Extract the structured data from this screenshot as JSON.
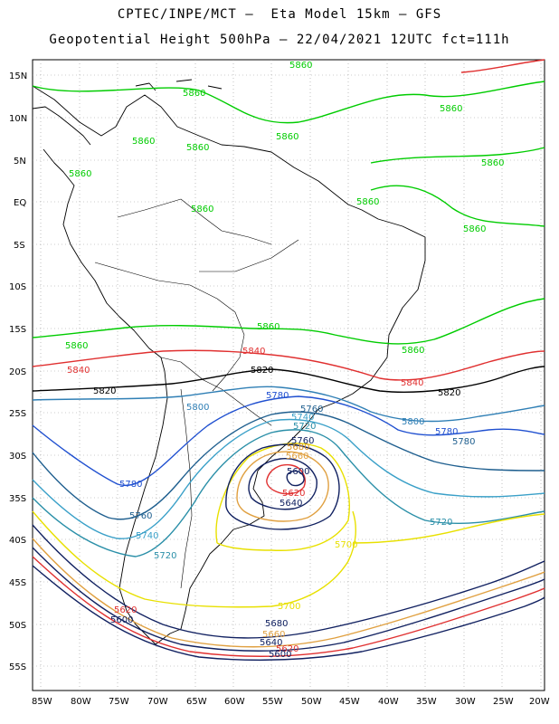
{
  "header": {
    "line1": "CPTEC/INPE/MCT –  Eta Model 15km – GFS",
    "line2": "Geopotential Height 500hPa – 22/04/2021 12UTC fct=111h"
  },
  "axes": {
    "lat_labels": [
      "15N",
      "10N",
      "5N",
      "EQ",
      "5S",
      "10S",
      "15S",
      "20S",
      "25S",
      "30S",
      "35S",
      "40S",
      "45S",
      "50S",
      "55S"
    ],
    "lon_labels": [
      "85W",
      "80W",
      "75W",
      "70W",
      "65W",
      "60W",
      "55W",
      "50W",
      "45W",
      "40W",
      "35W",
      "30W",
      "25W",
      "20W"
    ]
  },
  "contours": [
    {
      "value": "5860",
      "color": "#00cc00"
    },
    {
      "value": "5840",
      "color": "#e03030"
    },
    {
      "value": "5820",
      "color": "#000000"
    },
    {
      "value": "5800",
      "color": "#2f7fb5"
    },
    {
      "value": "5780",
      "color": "#2050d0"
    },
    {
      "value": "5760",
      "color": "#1f5f8f"
    },
    {
      "value": "5740",
      "color": "#3aa0c8"
    },
    {
      "value": "5720",
      "color": "#2a8fa8"
    },
    {
      "value": "5700",
      "color": "#e8e000"
    },
    {
      "value": "5680",
      "color": "#d89020"
    },
    {
      "value": "5660",
      "color": "#e0a040"
    },
    {
      "value": "5640",
      "color": "#102060"
    },
    {
      "value": "5620",
      "color": "#e03030"
    }
  ],
  "labels": {
    "l5860a": "5860",
    "l5860b": "5860",
    "l5860c": "5860",
    "l5860d": "5860",
    "l5860e": "5860",
    "l5860f": "5860",
    "l5860g": "5860",
    "l5860h": "5860",
    "l5860i": "5860",
    "l5860j": "5860",
    "l5860k": "5860",
    "l5860l": "5860",
    "l5860m": "5860",
    "l5860n": "5860",
    "l5840a": "5840",
    "l5840b": "5840",
    "l5840c": "5840",
    "l5820a": "5820",
    "l5820b": "5820",
    "l5820c": "5820",
    "l5800a": "5800",
    "l5800b": "5800",
    "l5780a": "5780",
    "l5780b": "5780",
    "l5780c": "5780",
    "l5780d": "5780",
    "l5760a": "5760",
    "l5760b": "5760",
    "l5760c": "5760",
    "l5740a": "5740",
    "l5740b": "5740",
    "l5720a": "5720",
    "l5720b": "5720",
    "l5720c": "5720",
    "l5700a": "5700",
    "l5700b": "5700",
    "l5680a": "5680",
    "l5680b": "5680",
    "l5660a": "5660",
    "l5660b": "5660",
    "l5640a": "5640",
    "l5640b": "5640",
    "l5620a": "5620",
    "l5620b": "5620",
    "l5620c": "5620",
    "l5600a": "5600",
    "l5600b": "5600",
    "l5600c": "5600"
  }
}
